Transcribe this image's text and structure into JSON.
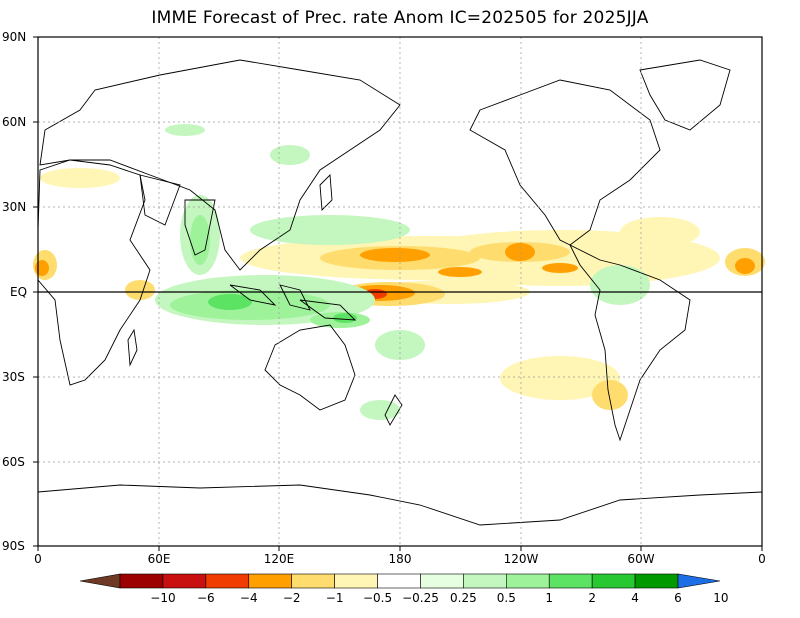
{
  "title": "IMME Forecast of Prec. rate Anom IC=202505 for 2025JJA",
  "lat_labels": [
    "90N",
    "60N",
    "30N",
    "EQ",
    "30S",
    "60S",
    "90S"
  ],
  "lon_labels": [
    "0",
    "60E",
    "120E",
    "180",
    "120W",
    "60W",
    "0"
  ],
  "colorbar": {
    "labels": [
      "−10",
      "−6",
      "−4",
      "−2",
      "−1",
      "−0.5",
      "−0.25",
      "0.25",
      "0.5",
      "1",
      "2",
      "4",
      "6",
      "10"
    ],
    "colors": [
      "#6e3a26",
      "#9c0000",
      "#c81010",
      "#f03c00",
      "#ffa000",
      "#ffdc6e",
      "#fff5b4",
      "#ffffff",
      "#e6ffe0",
      "#c4f7bf",
      "#9ef29a",
      "#5ce364",
      "#28c832",
      "#009a00",
      "#1e6ee6"
    ]
  },
  "colors": {
    "dry_strong": "#f03c00",
    "dry_moderate": "#ffa000",
    "dry_light": "#ffdc6e",
    "dry_faint": "#fff5b4",
    "wet_faint": "#e6ffe0",
    "wet_light": "#c4f7bf",
    "wet_moderate": "#9ef29a",
    "wet_strong": "#5ce364",
    "coastline": "#000000",
    "grid": "#9a9a9a"
  }
}
